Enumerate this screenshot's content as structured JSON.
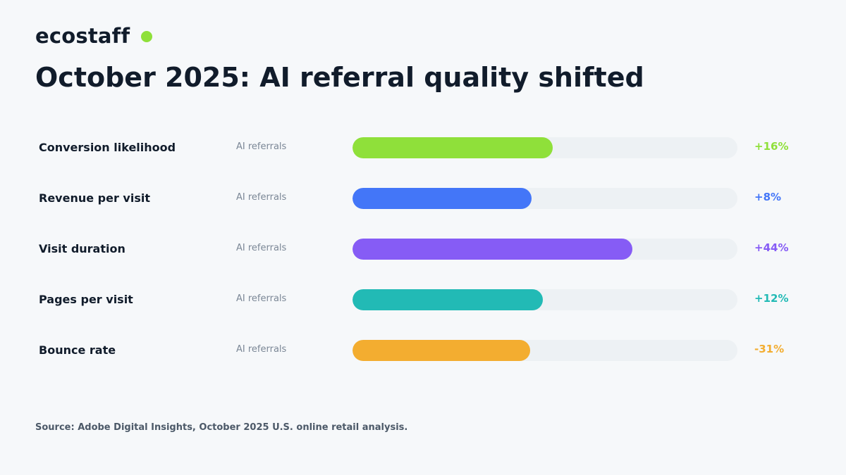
{
  "brand": {
    "name": "ecostaff",
    "dot_color": "#8fe03a"
  },
  "chart_data": {
    "type": "bar",
    "orientation": "horizontal",
    "title": "October 2025: AI referral quality shifted",
    "series_label": "AI referrals",
    "rows": [
      {
        "label": "Conversion likelihood",
        "value_text": "+16%",
        "fill": 0.52,
        "color": "#8fe03a"
      },
      {
        "label": "Revenue per visit",
        "value_text": "+8%",
        "fill": 0.465,
        "color": "#4376f8"
      },
      {
        "label": "Visit duration",
        "value_text": "+44%",
        "fill": 0.728,
        "color": "#865cf5"
      },
      {
        "label": "Pages per visit",
        "value_text": "+12%",
        "fill": 0.494,
        "color": "#22bab5"
      },
      {
        "label": "Bounce rate",
        "value_text": "-31%",
        "fill": 0.461,
        "color": "#f3ad30"
      }
    ],
    "source": "Source: Adobe Digital Insights, October 2025 U.S. online retail analysis."
  }
}
